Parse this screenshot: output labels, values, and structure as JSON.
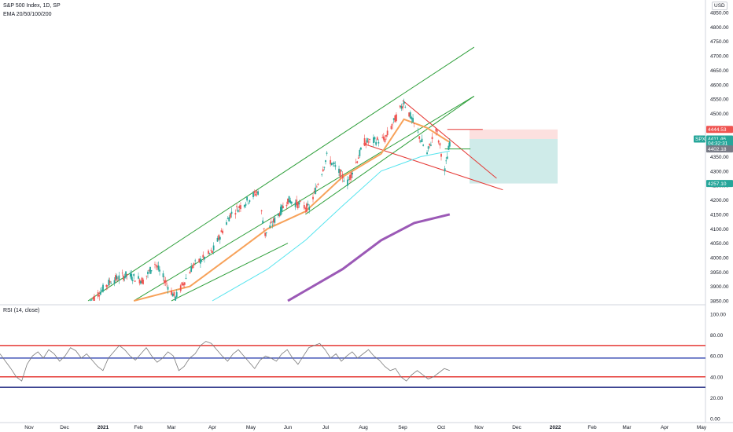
{
  "header": {
    "symbol_line": "S&P 500 Index, 1D, SP",
    "indicator_line": "EMA 20/50/100/200",
    "currency": "USD"
  },
  "rsi_panel": {
    "title": "RSI (14, close)"
  },
  "colors": {
    "bull": "#26a69a",
    "bear": "#ef5350",
    "ema20": "#f7a25a",
    "ema50": "#56e4ee",
    "ema200": "#9b59b6",
    "channel": "#2e9f3a",
    "wedge": "#e53935",
    "rsi_line": "#7b7b7b",
    "rsi_upper": "#e53935",
    "rsi_mid": "#3f51b5",
    "rsi_lower": "#e53935",
    "rsi_low": "#1a237e"
  },
  "chart_data": [
    {
      "type": "candlestick",
      "title": "S&P 500 Index, 1D, SP",
      "ylim": [
        3850,
        4850
      ],
      "yticks": [
        3850,
        3900,
        3950,
        4000,
        4050,
        4100,
        4150,
        4200,
        4250,
        4300,
        4350,
        4400,
        4450,
        4500,
        4550,
        4600,
        4650,
        4700,
        4750,
        4800,
        4850
      ],
      "ytick_labels": [
        "3850.00",
        "3900.00",
        "3950.00",
        "4000.00",
        "4050.00",
        "4100.00",
        "4150.00",
        "4200.00",
        "4250.00",
        "4300.00",
        "4350.00",
        "4400.00",
        "4450.00",
        "4500.00",
        "4550.00",
        "4600.00",
        "4650.00",
        "4700.00",
        "4750.00",
        "4800.00",
        "4850.00"
      ],
      "xtick_labels": [
        "Nov",
        "Dec",
        "2021",
        "Feb",
        "Mar",
        "Apr",
        "May",
        "Jun",
        "Jul",
        "Aug",
        "Sep",
        "Oct",
        "Nov",
        "Dec",
        "2022",
        "Feb",
        "Mar",
        "Apr",
        "May"
      ],
      "price_tags": [
        {
          "label": "4444.53",
          "value": 4444.53,
          "color": "#ef5350"
        },
        {
          "label": "SPX",
          "value": 4411.46,
          "color": "#26a69a"
        },
        {
          "label": "4411.46",
          "value": 4411.46,
          "color": "#26a69a"
        },
        {
          "label": "04:32:31",
          "value": 4397,
          "color": "#26a69a"
        },
        {
          "label": "4402.18",
          "value": 4377,
          "color": "#787b86"
        },
        {
          "label": "4257.10",
          "value": 4257.1,
          "color": "#26a69a"
        }
      ],
      "position_tool": {
        "entry": 4411.46,
        "stop": 4444.53,
        "target": 4257.1
      },
      "series": [
        {
          "name": "EMA 20",
          "color": "#f7a25a",
          "points": [
            [
              "2021-01-28",
              3850
            ],
            [
              "2021-03-15",
              3900
            ],
            [
              "2021-04-20",
              4020
            ],
            [
              "2021-05-15",
              4100
            ],
            [
              "2021-06-15",
              4160
            ],
            [
              "2021-07-15",
              4280
            ],
            [
              "2021-08-15",
              4360
            ],
            [
              "2021-09-02",
              4480
            ],
            [
              "2021-09-20",
              4450
            ],
            [
              "2021-10-08",
              4400
            ]
          ]
        },
        {
          "name": "EMA 50",
          "color": "#56e4ee",
          "points": [
            [
              "2021-04-01",
              3850
            ],
            [
              "2021-05-15",
              3960
            ],
            [
              "2021-06-15",
              4060
            ],
            [
              "2021-07-15",
              4180
            ],
            [
              "2021-08-15",
              4300
            ],
            [
              "2021-09-15",
              4350
            ],
            [
              "2021-10-08",
              4370
            ]
          ]
        },
        {
          "name": "EMA 200",
          "color": "#9b59b6",
          "points": [
            [
              "2021-06-01",
              3850
            ],
            [
              "2021-07-15",
              3960
            ],
            [
              "2021-08-15",
              4060
            ],
            [
              "2021-09-10",
              4120
            ],
            [
              "2021-10-08",
              4150
            ]
          ]
        }
      ]
    },
    {
      "type": "line",
      "title": "RSI (14, close)",
      "ylim": [
        0,
        100
      ],
      "yticks": [
        0,
        20,
        40,
        60,
        80,
        100
      ],
      "ytick_labels": [
        "0.00",
        "20.00",
        "40.00",
        "60.00",
        "80.00",
        "100.00"
      ],
      "levels": [
        70,
        58,
        40,
        30
      ],
      "series": [
        {
          "name": "RSI",
          "values": [
            62,
            55,
            48,
            40,
            36,
            52,
            60,
            64,
            58,
            66,
            62,
            55,
            60,
            68,
            65,
            58,
            62,
            56,
            50,
            46,
            58,
            64,
            70,
            66,
            60,
            56,
            62,
            68,
            60,
            54,
            58,
            64,
            60,
            46,
            50,
            58,
            62,
            70,
            74,
            72,
            66,
            60,
            55,
            62,
            66,
            60,
            54,
            48,
            56,
            60,
            58,
            55,
            62,
            66,
            58,
            52,
            60,
            68,
            70,
            72,
            66,
            58,
            62,
            55,
            60,
            64,
            58,
            62,
            66,
            60,
            56,
            50,
            46,
            48,
            40,
            36,
            42,
            46,
            42,
            38,
            40,
            44,
            48,
            46
          ]
        }
      ]
    }
  ]
}
